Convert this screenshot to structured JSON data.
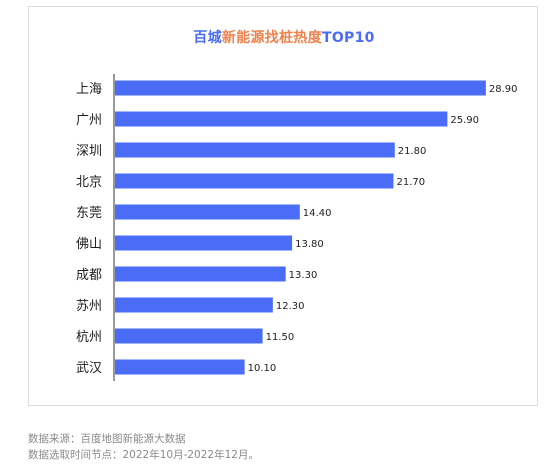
{
  "chart_data": {
    "type": "bar",
    "orientation": "horizontal",
    "title": "百城新能源找桩热度TOP10",
    "title_parts": [
      "百城",
      "新能源找桩热度",
      "TOP10"
    ],
    "categories": [
      "上海",
      "广州",
      "深圳",
      "北京",
      "东莞",
      "佛山",
      "成都",
      "苏州",
      "杭州",
      "武汉"
    ],
    "values": [
      28.9,
      25.9,
      21.8,
      21.7,
      14.4,
      13.8,
      13.3,
      12.3,
      11.5,
      10.1
    ],
    "value_labels": [
      "28.90",
      "25.90",
      "21.80",
      "21.70",
      "14.40",
      "13.80",
      "13.30",
      "12.30",
      "11.50",
      "10.10"
    ],
    "xlim": [
      0,
      30
    ],
    "grid": false,
    "bar_color": "#4a6cf7",
    "title_colors": [
      "#4a6cf7",
      "#f0824d",
      "#4a6cf7"
    ]
  },
  "footer": {
    "source": "数据来源：百度地图新能源大数据",
    "period": "数据选取时间节点：2022年10月-2022年12月。"
  }
}
